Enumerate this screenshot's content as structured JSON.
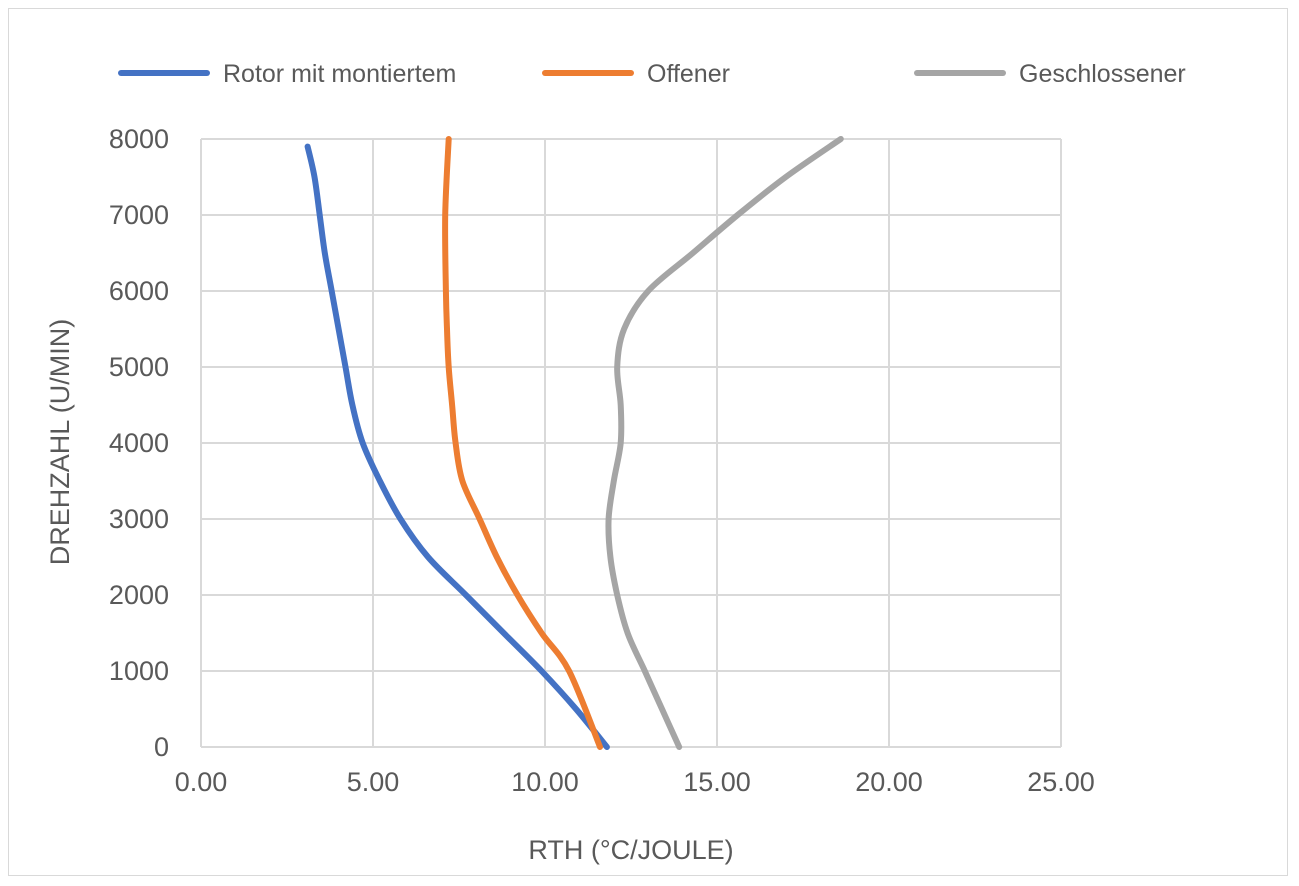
{
  "chart_data": {
    "type": "line",
    "title": "",
    "xlabel": "RTH (°C/JOULE)",
    "ylabel": "DREHZAHL (U/MIN)",
    "xlim": [
      0,
      25
    ],
    "ylim": [
      0,
      8000
    ],
    "x_ticks": [
      "0.00",
      "5.00",
      "10.00",
      "15.00",
      "20.00",
      "25.00"
    ],
    "y_ticks": [
      "0",
      "1000",
      "2000",
      "3000",
      "4000",
      "5000",
      "6000",
      "7000",
      "8000"
    ],
    "grid": true,
    "legend_position": "top",
    "series": [
      {
        "name": "Rotor mit montiertem",
        "color": "#4472C4",
        "points": [
          [
            11.8,
            0
          ],
          [
            10.9,
            500
          ],
          [
            9.9,
            1000
          ],
          [
            8.8,
            1500
          ],
          [
            7.7,
            2000
          ],
          [
            6.6,
            2500
          ],
          [
            5.8,
            3000
          ],
          [
            5.2,
            3500
          ],
          [
            4.7,
            4000
          ],
          [
            4.4,
            4500
          ],
          [
            4.2,
            5000
          ],
          [
            4.0,
            5500
          ],
          [
            3.8,
            6000
          ],
          [
            3.6,
            6500
          ],
          [
            3.45,
            7000
          ],
          [
            3.3,
            7500
          ],
          [
            3.1,
            7900
          ]
        ]
      },
      {
        "name": "Offener",
        "color": "#ED7D31",
        "points": [
          [
            11.6,
            0
          ],
          [
            10.7,
            1000
          ],
          [
            9.9,
            1500
          ],
          [
            9.2,
            2000
          ],
          [
            8.6,
            2500
          ],
          [
            8.1,
            3000
          ],
          [
            7.6,
            3500
          ],
          [
            7.4,
            4000
          ],
          [
            7.3,
            4500
          ],
          [
            7.2,
            5000
          ],
          [
            7.15,
            5500
          ],
          [
            7.12,
            6000
          ],
          [
            7.1,
            7000
          ],
          [
            7.2,
            8000
          ]
        ]
      },
      {
        "name": "Geschlossener",
        "color": "#A5A5A5",
        "points": [
          [
            13.9,
            0
          ],
          [
            13.4,
            500
          ],
          [
            12.9,
            1000
          ],
          [
            12.4,
            1500
          ],
          [
            12.1,
            2000
          ],
          [
            11.9,
            2500
          ],
          [
            11.85,
            3000
          ],
          [
            12.0,
            3500
          ],
          [
            12.2,
            4000
          ],
          [
            12.2,
            4500
          ],
          [
            12.1,
            5000
          ],
          [
            12.3,
            5500
          ],
          [
            13.0,
            6000
          ],
          [
            14.3,
            6500
          ],
          [
            15.6,
            7000
          ],
          [
            17.0,
            7500
          ],
          [
            18.6,
            8000
          ]
        ]
      }
    ]
  }
}
